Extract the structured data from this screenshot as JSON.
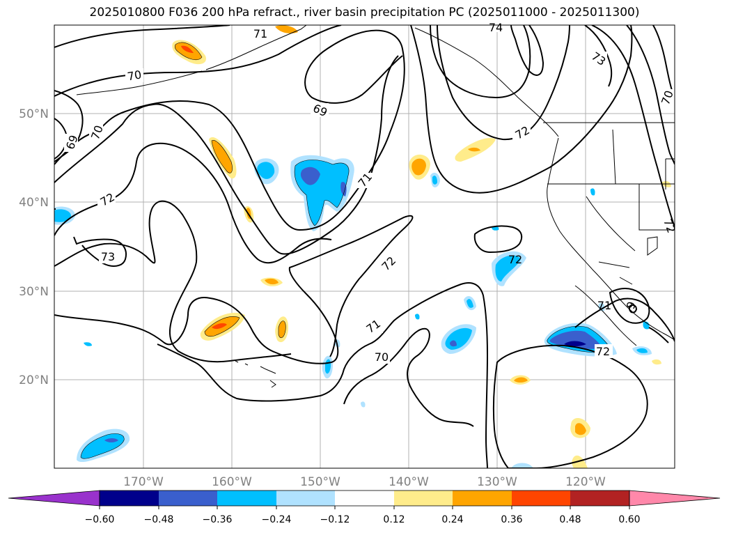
{
  "title": "2025010800 F036 200 hPa refract., river basin precipitation PC (2025011000 - 2025011300)",
  "map": {
    "lon_labels": [
      "170°W",
      "160°W",
      "150°W",
      "140°W",
      "130°W",
      "120°W"
    ],
    "lat_labels": [
      "50°N",
      "40°N",
      "30°N",
      "20°N"
    ],
    "contour_labels": [
      "71",
      "74",
      "73",
      "70",
      "69",
      "70",
      "69",
      "70",
      "72",
      "71",
      "72",
      "73",
      "72",
      "72",
      "71",
      "70",
      "72",
      "71",
      "9",
      "72"
    ],
    "colors": {
      "label_gray": "#808080",
      "grid": "#b0b0b0",
      "contour": "#000000"
    }
  },
  "colorbar": {
    "colors": [
      "#9932cc",
      "#00008b",
      "#3a5fcd",
      "#00bfff",
      "#b0e2ff",
      "#ffffff",
      "#ffec8b",
      "#ffa500",
      "#ff4500",
      "#b22222",
      "#ff88aa"
    ],
    "tick_labels": [
      "−0.60",
      "−0.48",
      "−0.36",
      "−0.24",
      "−0.12",
      "0.12",
      "0.24",
      "0.36",
      "0.48",
      "0.60"
    ]
  }
}
